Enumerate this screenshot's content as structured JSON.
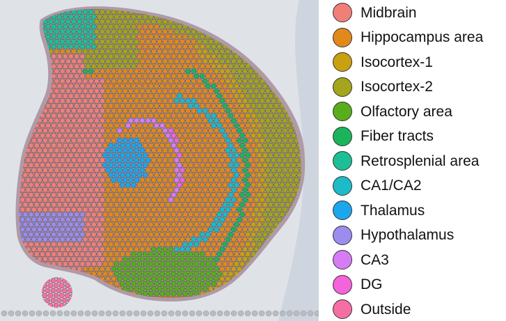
{
  "legend": {
    "items": [
      {
        "label": "Midbrain",
        "color": "#f07f7a"
      },
      {
        "label": "Hippocampus area",
        "color": "#e2891c"
      },
      {
        "label": "Isocortex-1",
        "color": "#c9a010"
      },
      {
        "label": "Isocortex-2",
        "color": "#a3a51c"
      },
      {
        "label": "Olfactory area",
        "color": "#58ad1c"
      },
      {
        "label": "Fiber tracts",
        "color": "#1cb45b"
      },
      {
        "label": "Retrosplenial area",
        "color": "#1cbf96"
      },
      {
        "label": "CA1/CA2",
        "color": "#1cbbc7"
      },
      {
        "label": "Thalamus",
        "color": "#1ca6ec"
      },
      {
        "label": "Hypothalamus",
        "color": "#9b8cee"
      },
      {
        "label": "CA3",
        "color": "#d77cf5"
      },
      {
        "label": "DG",
        "color": "#f462dc"
      },
      {
        "label": "Outside",
        "color": "#f56fa4"
      }
    ]
  },
  "background": {
    "slide_color": "#dfe3e8",
    "stain_color": "#b09aa8",
    "bg_spot_color": "#b9bcc2"
  }
}
